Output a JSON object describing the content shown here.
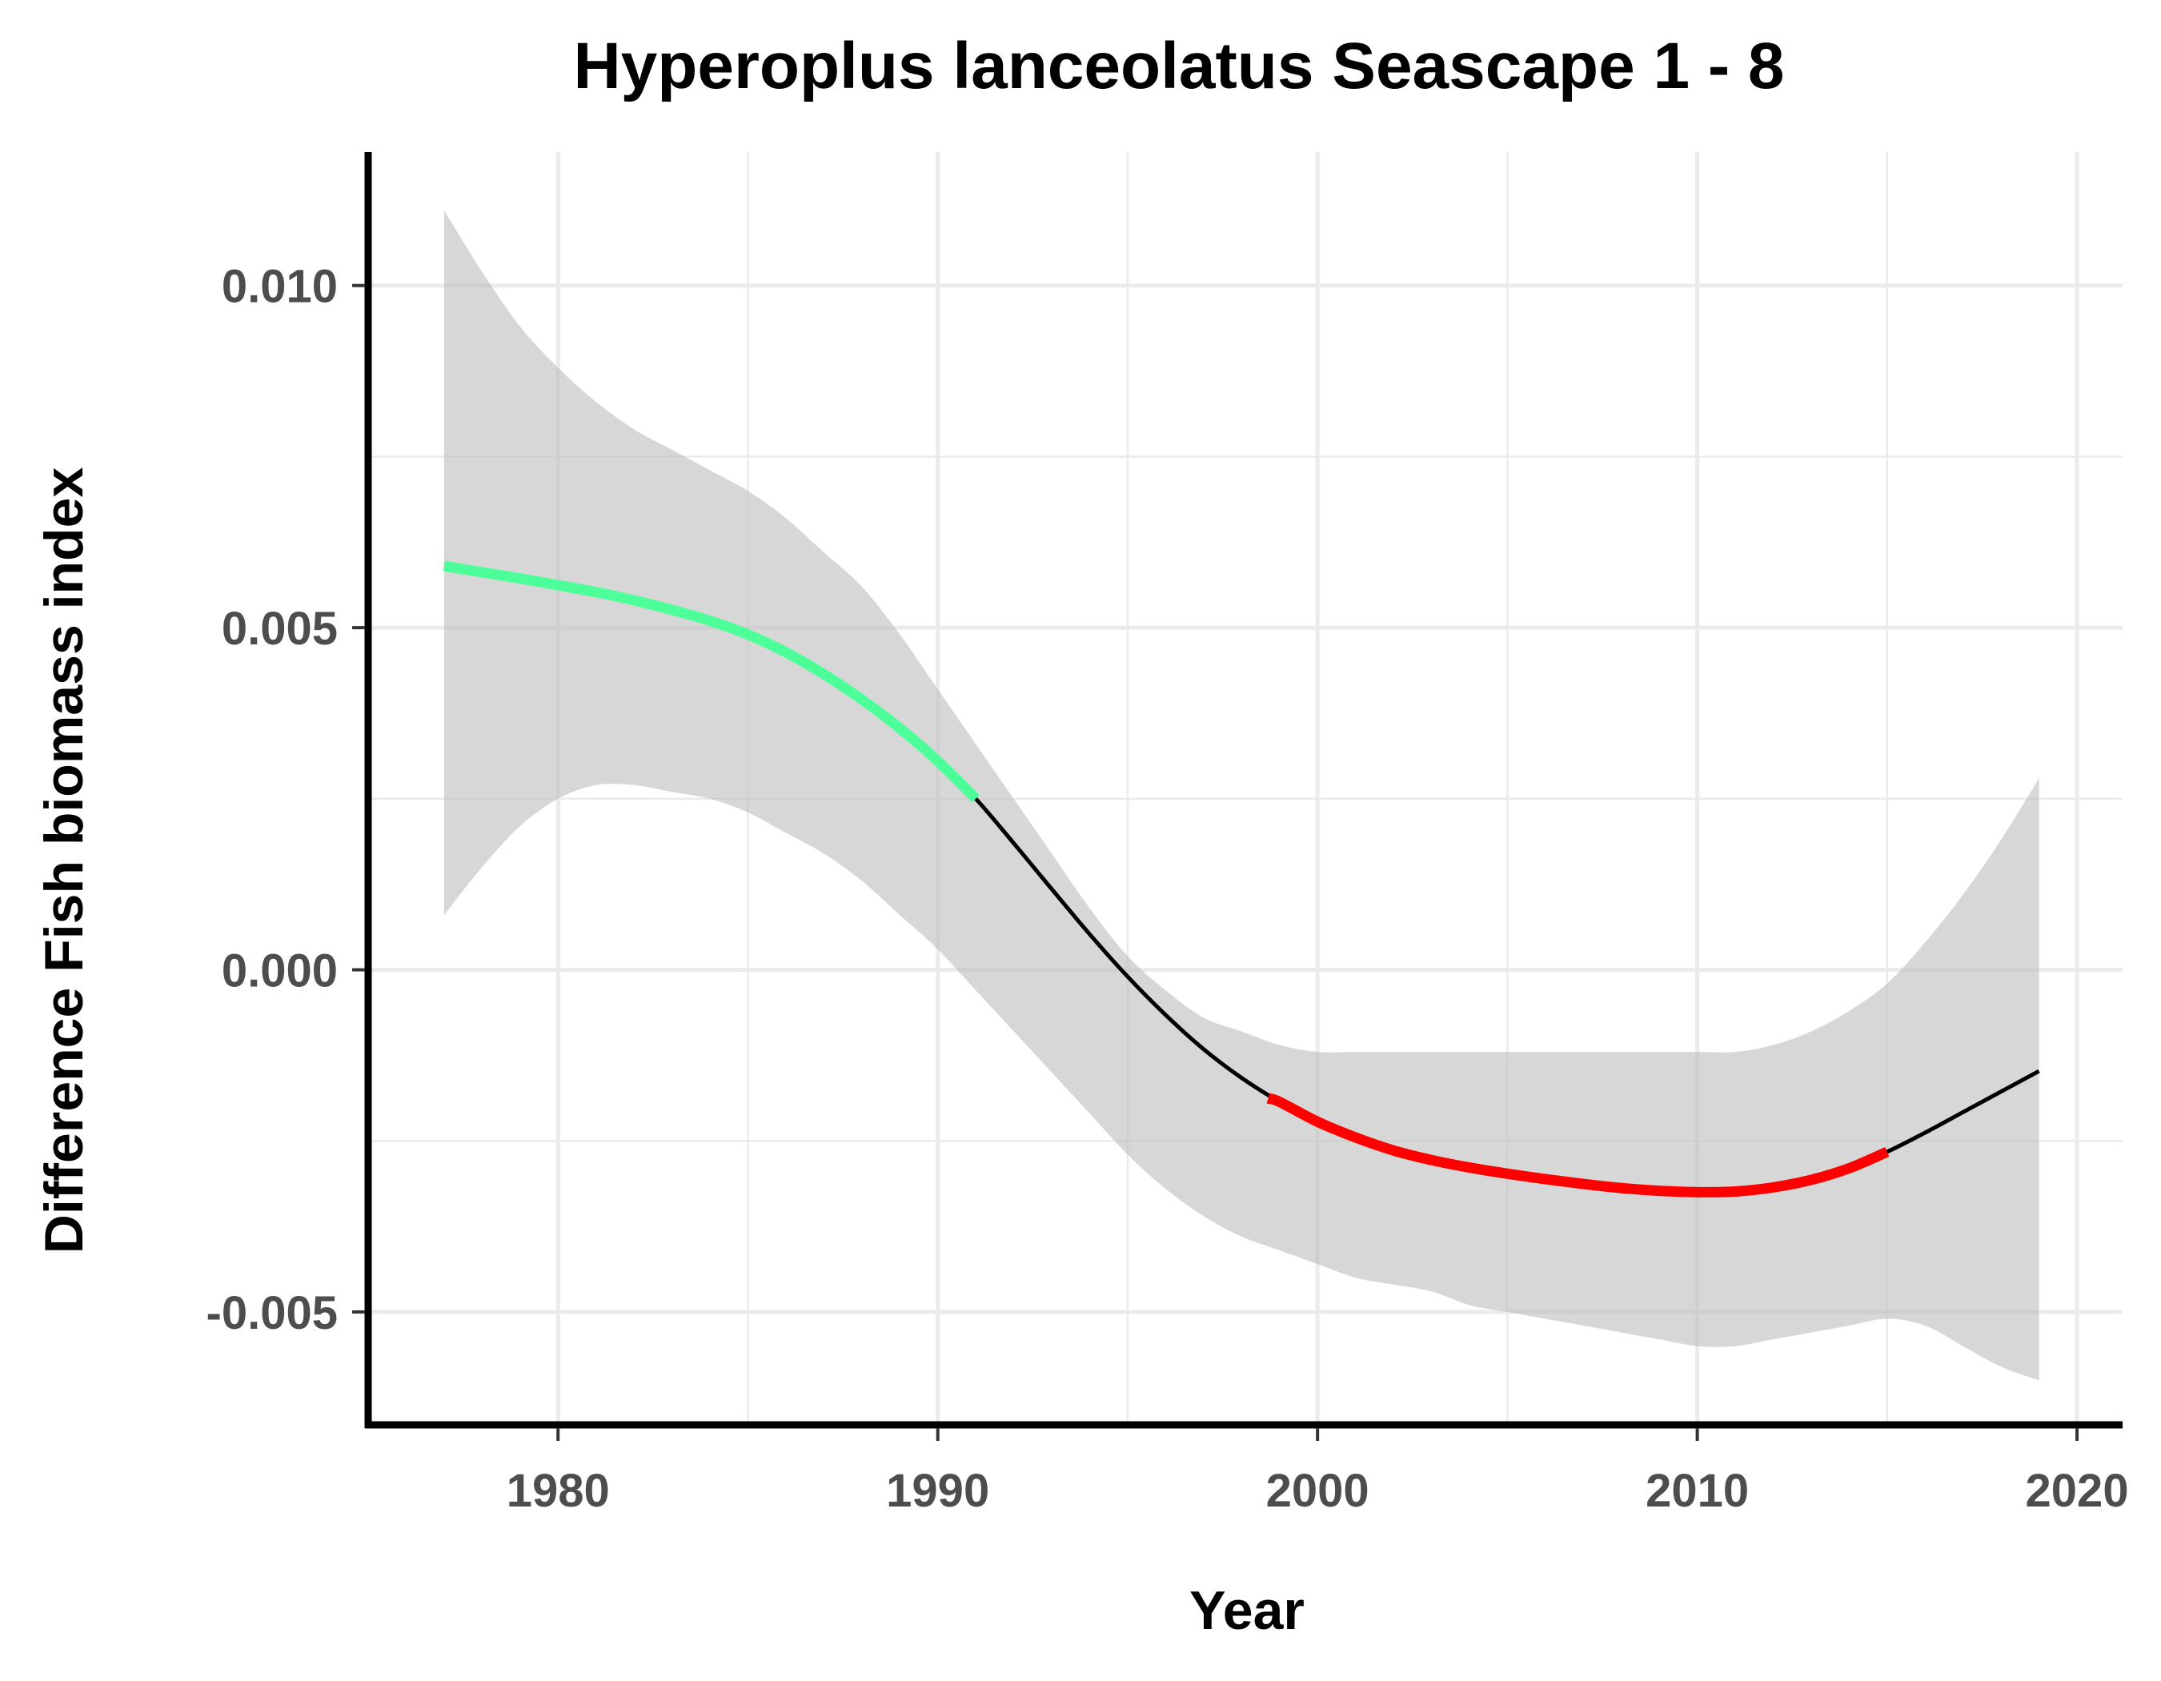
{
  "chart_data": {
    "type": "line",
    "title": "Hyperoplus lanceolatus Seascape 1 - 8",
    "xlabel": "Year",
    "ylabel": "Difference Fish biomass index",
    "xlim": [
      1975,
      2021.2
    ],
    "ylim": [
      -0.00665,
      0.01195
    ],
    "x_ticks": [
      1980,
      1990,
      2000,
      2010,
      2020
    ],
    "x_tick_labels": [
      "1980",
      "1990",
      "2000",
      "2010",
      "2020"
    ],
    "y_ticks": [
      -0.005,
      0.0,
      0.005,
      0.01
    ],
    "y_tick_labels": [
      "-0.005",
      "0.000",
      "0.005",
      "0.010"
    ],
    "grid": true,
    "series": [
      {
        "role": "fit",
        "color": "#000000",
        "x": [
          1977,
          1978,
          1979,
          1980,
          1981,
          1982,
          1983,
          1984,
          1985,
          1986,
          1987,
          1988,
          1989,
          1990,
          1991,
          1992,
          1993,
          1994,
          1995,
          1996,
          1997,
          1998,
          1999,
          2000,
          2001,
          2002,
          2003,
          2004,
          2005,
          2006,
          2007,
          2008,
          2009,
          2010,
          2011,
          2012,
          2013,
          2014,
          2015,
          2016,
          2017,
          2018,
          2019
        ],
        "y": [
          0.0059,
          0.00581,
          0.00572,
          0.00562,
          0.00552,
          0.0054,
          0.00526,
          0.0051,
          0.0049,
          0.00464,
          0.00432,
          0.00395,
          0.00353,
          0.00305,
          0.0025,
          0.00185,
          0.00118,
          0.00052,
          -0.0001,
          -0.00066,
          -0.00116,
          -0.00158,
          -0.00193,
          -0.00222,
          -0.00245,
          -0.00264,
          -0.00278,
          -0.00289,
          -0.00298,
          -0.00306,
          -0.00313,
          -0.00319,
          -0.00323,
          -0.00325,
          -0.00324,
          -0.00318,
          -0.00307,
          -0.0029,
          -0.00266,
          -0.00238,
          -0.00208,
          -0.00178,
          -0.00148
        ]
      },
      {
        "role": "increase",
        "color": "#4dff99",
        "x": [
          1977,
          1978,
          1979,
          1980,
          1981,
          1982,
          1983,
          1984,
          1985,
          1986,
          1987,
          1988,
          1989,
          1990,
          1991
        ],
        "y": [
          0.0059,
          0.00581,
          0.00572,
          0.00562,
          0.00552,
          0.0054,
          0.00526,
          0.0051,
          0.0049,
          0.00464,
          0.00432,
          0.00395,
          0.00353,
          0.00305,
          0.0025
        ]
      },
      {
        "role": "decrease",
        "color": "#ff0000",
        "x": [
          1998.7,
          1999,
          2000,
          2001,
          2002,
          2003,
          2004,
          2005,
          2006,
          2007,
          2008,
          2009,
          2010,
          2011,
          2012,
          2013,
          2014,
          2015
        ],
        "y": [
          -0.00188,
          -0.00193,
          -0.00222,
          -0.00245,
          -0.00264,
          -0.00278,
          -0.00289,
          -0.00298,
          -0.00306,
          -0.00313,
          -0.00319,
          -0.00323,
          -0.00325,
          -0.00324,
          -0.00318,
          -0.00307,
          -0.0029,
          -0.00266
        ]
      }
    ],
    "confidence_band": {
      "color": "#bdbdbd",
      "x": [
        1977,
        1978,
        1979,
        1980,
        1981,
        1982,
        1983,
        1984,
        1985,
        1986,
        1987,
        1988,
        1989,
        1990,
        1991,
        1992,
        1993,
        1994,
        1995,
        1996,
        1997,
        1998,
        1999,
        2000,
        2001,
        2002,
        2003,
        2004,
        2005,
        2006,
        2007,
        2008,
        2009,
        2010,
        2011,
        2012,
        2013,
        2014,
        2015,
        2016,
        2017,
        2018,
        2019
      ],
      "lower": [
        0.0008,
        0.0015,
        0.0021,
        0.0025,
        0.0027,
        0.0027,
        0.0026,
        0.0025,
        0.0023,
        0.002,
        0.0017,
        0.0013,
        0.0008,
        0.0003,
        -0.0003,
        -0.0009,
        -0.0015,
        -0.0021,
        -0.0027,
        -0.0032,
        -0.0036,
        -0.0039,
        -0.0041,
        -0.0043,
        -0.0045,
        -0.0046,
        -0.0047,
        -0.0049,
        -0.005,
        -0.0051,
        -0.0052,
        -0.0053,
        -0.0054,
        -0.0055,
        -0.0055,
        -0.0054,
        -0.0053,
        -0.0052,
        -0.0051,
        -0.0052,
        -0.0055,
        -0.0058,
        -0.006
      ],
      "upper": [
        0.0111,
        0.0102,
        0.0094,
        0.0088,
        0.0083,
        0.0079,
        0.0076,
        0.0073,
        0.007,
        0.0066,
        0.0061,
        0.0056,
        0.0049,
        0.0041,
        0.0033,
        0.0025,
        0.0017,
        0.0009,
        0.0002,
        -0.0003,
        -0.0007,
        -0.0009,
        -0.0011,
        -0.0012,
        -0.0012,
        -0.0012,
        -0.0012,
        -0.0012,
        -0.0012,
        -0.0012,
        -0.0012,
        -0.0012,
        -0.0012,
        -0.0012,
        -0.0012,
        -0.0011,
        -0.0009,
        -0.0006,
        -0.0002,
        0.0004,
        0.0011,
        0.0019,
        0.0028
      ]
    }
  }
}
